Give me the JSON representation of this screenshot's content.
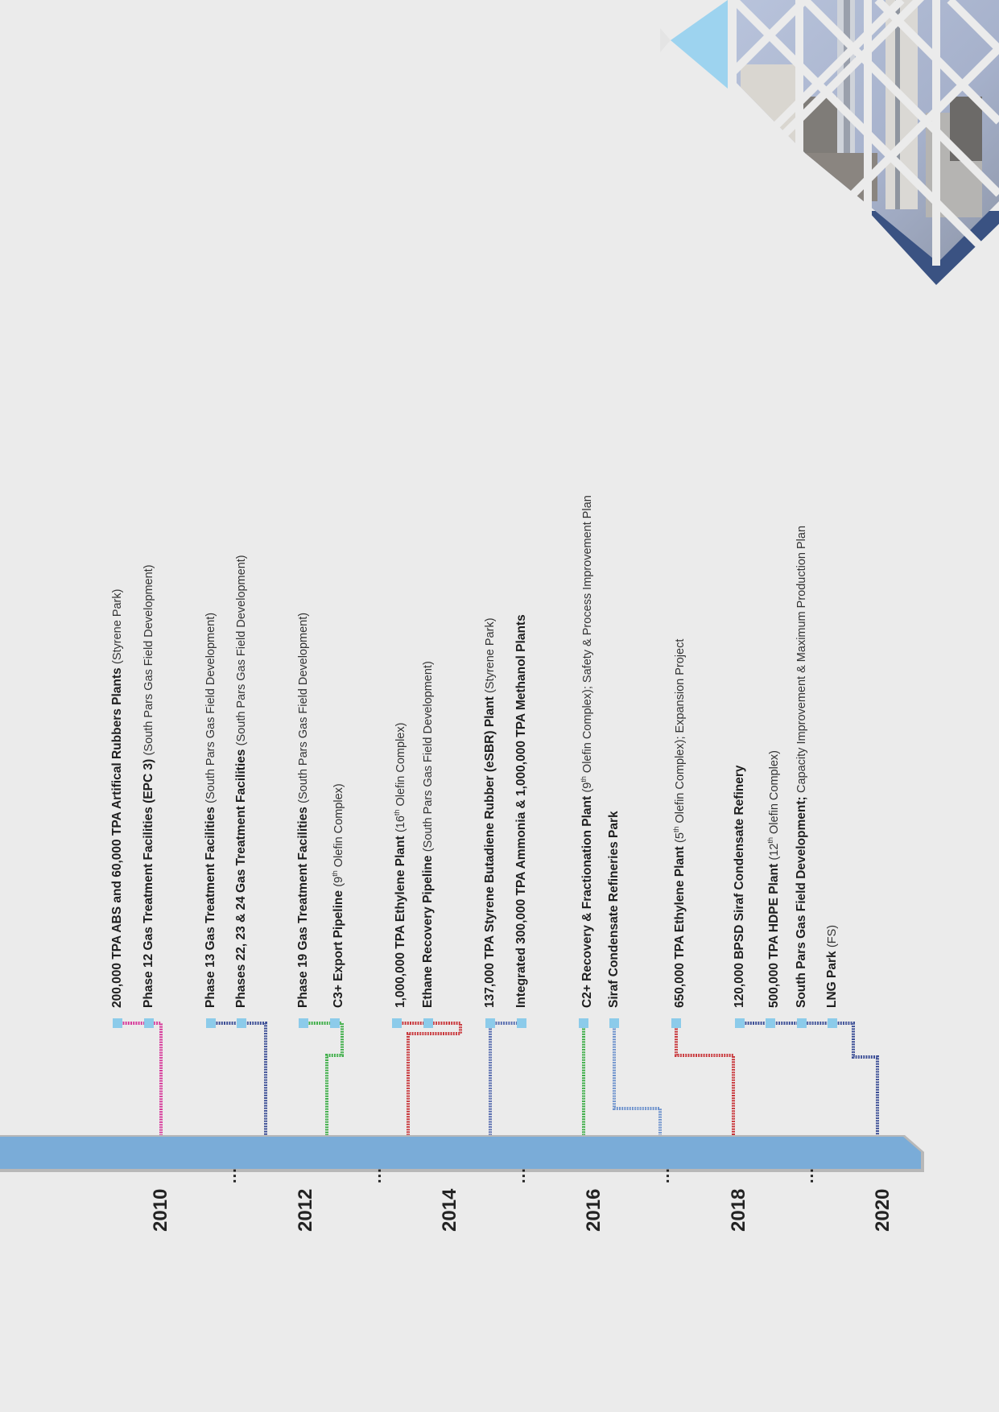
{
  "timeline": {
    "bar_color": "#7aacd8",
    "axis_labels": [
      {
        "text": "2010",
        "kind": "year"
      },
      {
        "text": "...",
        "kind": "dots"
      },
      {
        "text": "2012",
        "kind": "year"
      },
      {
        "text": "...",
        "kind": "dots"
      },
      {
        "text": "2014",
        "kind": "year"
      },
      {
        "text": "...",
        "kind": "dots"
      },
      {
        "text": "2016",
        "kind": "year"
      },
      {
        "text": "...",
        "kind": "dots"
      },
      {
        "text": "2018",
        "kind": "year"
      },
      {
        "text": "...",
        "kind": "dots"
      },
      {
        "text": "2020",
        "kind": "year"
      }
    ]
  },
  "projects": [
    {
      "name": "200,000 TPA ABS and 60,000 TPA Artifical Rubbers Plants",
      "detail": "(Styrene Park)",
      "color": "#d63a9a"
    },
    {
      "name": "Phase 12 Gas Treatment Facilities (EPC 3)",
      "detail": "(South Pars Gas Field Development)",
      "color": "#d63a9a"
    },
    {
      "name": "Phase 13 Gas Treatment Facilities",
      "detail": "(South Pars Gas Field Development)",
      "color": "#3d4f96"
    },
    {
      "name": "Phases 22, 23 & 24 Gas Treatment Facilities",
      "detail": "(South Pars Gas Field Development)",
      "color": "#3d4f96"
    },
    {
      "name": "Phase 19 Gas Treatment Facilities",
      "detail": "(South Pars Gas Field Development)",
      "color": "#3fae49"
    },
    {
      "name": "C3+ Export Pipeline",
      "detail_pre": "(9",
      "sup": "th",
      "detail_post": " Olefin Complex)",
      "color": "#3fae49"
    },
    {
      "name": "1,000,000 TPA Ethylene Plant",
      "detail_pre": "(16",
      "sup": "th",
      "detail_post": " Olefin Complex)",
      "color": "#c8383c"
    },
    {
      "name": "Ethane Recovery Pipeline",
      "detail": "(South Pars Gas Field Development)",
      "color": "#c8383c"
    },
    {
      "name": "137,000 TPA Styrene Butadiene Rubber (eSBR) Plant",
      "detail": "(Styrene Park)",
      "color": "#5b6fb0"
    },
    {
      "name": "Integrated 300,000 TPA Ammonia & 1,000,000 TPA Methanol Plants",
      "detail": "",
      "color": "#5b6fb0"
    },
    {
      "name": "C2+ Recovery & Fractionation Plant",
      "detail_pre": "(9",
      "sup": "th",
      "detail_post": " Olefin Complex); Safety & Process Improvement Plan",
      "color": "#3fae49"
    },
    {
      "name": "Siraf Condensate Refineries Park",
      "detail": "",
      "color": "#6f93cc"
    },
    {
      "name": "650,000 TPA Ethylene Plant",
      "detail_pre": "(5",
      "sup": "th",
      "detail_post": " Olefin Complex); Expansion Project",
      "color": "#c8383c"
    },
    {
      "name": "120,000 BPSD Siraf Condensate Refinery",
      "detail": "",
      "color": "#3d4f96"
    },
    {
      "name": "500,000 TPA HDPE Plant",
      "detail_pre": "(12",
      "sup": "th",
      "detail_post": " Olefin Complex)",
      "color": "#3d4f96"
    },
    {
      "name": "South Pars Gas Field Development;",
      "detail": "Capacity Improvement & Maximum Production Plan",
      "color": "#3d4f96"
    },
    {
      "name": "LNG Park",
      "detail": "(FS)",
      "color": "#3d4f96"
    }
  ],
  "marker_color": "#8ccbea",
  "corner_colors": {
    "light": "#9dd3ef",
    "dark": "#3a5282",
    "photo": "#9aa7bf"
  }
}
